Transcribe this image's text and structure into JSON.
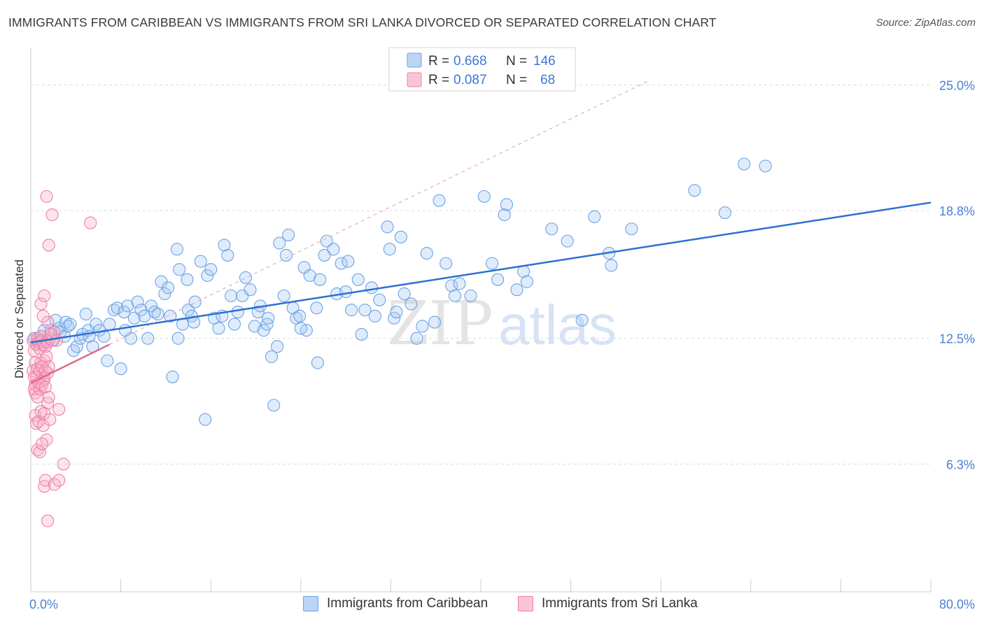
{
  "title": "IMMIGRANTS FROM CARIBBEAN VS IMMIGRANTS FROM SRI LANKA DIVORCED OR SEPARATED CORRELATION CHART",
  "source": "Source: ZipAtlas.com",
  "watermark": {
    "zip": "ZIP",
    "atlas": "atlas"
  },
  "colors": {
    "blue": "#6aa3e8",
    "blue_line": "#2d6fd1",
    "pink": "#f07fa5",
    "pink_line": "#e06a93",
    "axis_text": "#4a7fd4"
  },
  "legend": {
    "rows": [
      {
        "r_label": "R =",
        "r_value": "0.668",
        "n_label": "N =",
        "n_value": "146"
      },
      {
        "r_label": "R =",
        "r_value": "0.087",
        "n_label": "N =",
        "n_value": "68"
      }
    ]
  },
  "bottom_legend": [
    {
      "label": "Immigrants from Caribbean"
    },
    {
      "label": "Immigrants from Sri Lanka"
    }
  ],
  "chart_data": {
    "type": "scatter",
    "title": "IMMIGRANTS FROM CARIBBEAN VS IMMIGRANTS FROM SRI LANKA DIVORCED OR SEPARATED CORRELATION CHART",
    "xlabel": "",
    "ylabel": "Divorced or Separated",
    "xlim": [
      0,
      80
    ],
    "ylim": [
      0,
      26.5
    ],
    "x_tick_labels": [
      "0.0%",
      "80.0%"
    ],
    "y_ticks": [
      6.3,
      12.5,
      18.8,
      25.0
    ],
    "y_tick_labels": [
      "6.3%",
      "12.5%",
      "18.8%",
      "25.0%"
    ],
    "grid": "horizontal dashed",
    "legend_position": "top-center",
    "series": [
      {
        "name": "Immigrants from Caribbean",
        "color": "#6aa3e8",
        "trend": {
          "x": [
            0.0,
            80.0
          ],
          "y": [
            12.3,
            19.2
          ]
        },
        "points": [
          [
            0.3,
            12.5
          ],
          [
            0.5,
            12.2
          ],
          [
            0.7,
            12.4
          ],
          [
            0.9,
            12.6
          ],
          [
            1.1,
            12.3
          ],
          [
            1.2,
            12.9
          ],
          [
            1.5,
            12.4
          ],
          [
            1.8,
            12.9
          ],
          [
            2.0,
            12.4
          ],
          [
            2.2,
            13.4
          ],
          [
            2.5,
            13.0
          ],
          [
            2.6,
            12.8
          ],
          [
            3.0,
            12.6
          ],
          [
            3.1,
            13.3
          ],
          [
            3.3,
            13.1
          ],
          [
            3.5,
            13.2
          ],
          [
            3.8,
            11.9
          ],
          [
            4.1,
            12.1
          ],
          [
            4.4,
            12.5
          ],
          [
            4.6,
            12.7
          ],
          [
            4.9,
            13.7
          ],
          [
            5.1,
            12.9
          ],
          [
            5.2,
            12.6
          ],
          [
            5.5,
            12.1
          ],
          [
            5.8,
            13.2
          ],
          [
            6.1,
            12.9
          ],
          [
            6.5,
            12.6
          ],
          [
            6.8,
            11.4
          ],
          [
            7.0,
            13.2
          ],
          [
            7.4,
            13.9
          ],
          [
            7.7,
            14.0
          ],
          [
            8.0,
            11.0
          ],
          [
            8.3,
            13.8
          ],
          [
            8.6,
            14.1
          ],
          [
            8.9,
            12.5
          ],
          [
            9.2,
            13.5
          ],
          [
            9.5,
            14.3
          ],
          [
            9.8,
            13.9
          ],
          [
            10.1,
            13.6
          ],
          [
            10.4,
            12.5
          ],
          [
            10.7,
            14.1
          ],
          [
            11.0,
            13.8
          ],
          [
            11.3,
            13.7
          ],
          [
            11.6,
            15.3
          ],
          [
            11.9,
            14.7
          ],
          [
            12.2,
            15.0
          ],
          [
            12.4,
            13.6
          ],
          [
            12.6,
            10.6
          ],
          [
            13.0,
            16.9
          ],
          [
            13.2,
            15.9
          ],
          [
            13.5,
            13.2
          ],
          [
            13.9,
            15.4
          ],
          [
            14.0,
            13.9
          ],
          [
            14.3,
            13.6
          ],
          [
            14.5,
            13.3
          ],
          [
            14.6,
            14.3
          ],
          [
            15.1,
            16.3
          ],
          [
            15.5,
            8.5
          ],
          [
            15.7,
            15.6
          ],
          [
            16.0,
            15.9
          ],
          [
            16.3,
            13.5
          ],
          [
            16.7,
            13.0
          ],
          [
            17.0,
            13.6
          ],
          [
            17.2,
            17.1
          ],
          [
            17.5,
            16.6
          ],
          [
            17.8,
            14.6
          ],
          [
            18.1,
            13.2
          ],
          [
            18.4,
            13.8
          ],
          [
            18.8,
            14.6
          ],
          [
            19.1,
            15.5
          ],
          [
            19.5,
            14.9
          ],
          [
            19.9,
            13.1
          ],
          [
            20.2,
            13.8
          ],
          [
            20.4,
            14.1
          ],
          [
            20.7,
            12.9
          ],
          [
            21.0,
            13.2
          ],
          [
            21.1,
            13.5
          ],
          [
            21.4,
            11.6
          ],
          [
            21.6,
            9.2
          ],
          [
            21.9,
            12.1
          ],
          [
            22.1,
            17.2
          ],
          [
            22.5,
            14.6
          ],
          [
            22.7,
            16.6
          ],
          [
            22.9,
            17.6
          ],
          [
            23.3,
            14.0
          ],
          [
            23.6,
            13.5
          ],
          [
            23.9,
            13.6
          ],
          [
            24.3,
            16.0
          ],
          [
            24.5,
            12.9
          ],
          [
            24.8,
            15.6
          ],
          [
            25.4,
            14.0
          ],
          [
            25.5,
            11.3
          ],
          [
            25.7,
            15.4
          ],
          [
            26.1,
            16.6
          ],
          [
            26.3,
            17.3
          ],
          [
            26.9,
            16.9
          ],
          [
            27.2,
            14.7
          ],
          [
            27.6,
            16.2
          ],
          [
            28.0,
            14.8
          ],
          [
            28.2,
            16.3
          ],
          [
            28.5,
            13.9
          ],
          [
            29.1,
            15.4
          ],
          [
            29.4,
            12.7
          ],
          [
            29.7,
            13.9
          ],
          [
            30.3,
            15.0
          ],
          [
            31.0,
            14.4
          ],
          [
            31.7,
            18.0
          ],
          [
            31.9,
            16.9
          ],
          [
            32.3,
            13.5
          ],
          [
            32.5,
            13.8
          ],
          [
            32.9,
            17.5
          ],
          [
            33.2,
            14.7
          ],
          [
            33.8,
            14.2
          ],
          [
            34.3,
            12.5
          ],
          [
            34.8,
            13.1
          ],
          [
            35.2,
            16.7
          ],
          [
            35.9,
            13.3
          ],
          [
            36.3,
            19.3
          ],
          [
            36.9,
            16.2
          ],
          [
            37.4,
            15.1
          ],
          [
            37.7,
            14.6
          ],
          [
            38.1,
            15.2
          ],
          [
            39.1,
            14.6
          ],
          [
            40.3,
            19.5
          ],
          [
            41.0,
            16.2
          ],
          [
            41.5,
            15.4
          ],
          [
            42.1,
            18.6
          ],
          [
            42.3,
            19.1
          ],
          [
            43.2,
            14.9
          ],
          [
            43.8,
            15.8
          ],
          [
            44.1,
            15.3
          ],
          [
            46.3,
            17.9
          ],
          [
            47.7,
            17.3
          ],
          [
            49.0,
            13.4
          ],
          [
            50.1,
            18.5
          ],
          [
            51.4,
            16.7
          ],
          [
            51.6,
            16.1
          ],
          [
            53.4,
            17.9
          ],
          [
            59.0,
            19.8
          ],
          [
            61.7,
            18.7
          ],
          [
            63.4,
            21.1
          ],
          [
            65.3,
            21.0
          ],
          [
            13.1,
            12.5
          ],
          [
            8.4,
            12.9
          ],
          [
            24.0,
            13.0
          ],
          [
            30.6,
            13.6
          ]
        ]
      },
      {
        "name": "Immigrants from Sri Lanka",
        "color": "#f07fa5",
        "trend": {
          "x": [
            0.0,
            7.0
          ],
          "y": [
            10.3,
            12.2
          ]
        },
        "points": [
          [
            0.2,
            12.4
          ],
          [
            0.3,
            11.9
          ],
          [
            0.4,
            11.3
          ],
          [
            0.5,
            12.2
          ],
          [
            0.6,
            12.5
          ],
          [
            0.7,
            12.3
          ],
          [
            0.8,
            12.0
          ],
          [
            0.9,
            12.6
          ],
          [
            1.0,
            12.4
          ],
          [
            1.1,
            12.2
          ],
          [
            1.2,
            11.4
          ],
          [
            1.3,
            12.1
          ],
          [
            1.5,
            12.3
          ],
          [
            1.7,
            12.5
          ],
          [
            1.9,
            12.4
          ],
          [
            2.1,
            12.8
          ],
          [
            0.2,
            10.9
          ],
          [
            0.3,
            10.6
          ],
          [
            0.4,
            10.2
          ],
          [
            0.5,
            10.6
          ],
          [
            0.6,
            11.0
          ],
          [
            0.7,
            10.3
          ],
          [
            0.8,
            10.9
          ],
          [
            0.9,
            11.3
          ],
          [
            1.0,
            11.1
          ],
          [
            1.1,
            10.4
          ],
          [
            1.2,
            10.5
          ],
          [
            1.3,
            10.9
          ],
          [
            1.4,
            11.6
          ],
          [
            1.5,
            10.8
          ],
          [
            1.6,
            11.1
          ],
          [
            0.3,
            10.0
          ],
          [
            0.4,
            9.8
          ],
          [
            0.6,
            9.6
          ],
          [
            0.7,
            10.3
          ],
          [
            0.8,
            10.0
          ],
          [
            1.0,
            10.2
          ],
          [
            1.3,
            10.1
          ],
          [
            1.5,
            9.3
          ],
          [
            1.6,
            9.6
          ],
          [
            0.4,
            8.7
          ],
          [
            0.5,
            8.3
          ],
          [
            0.7,
            8.4
          ],
          [
            0.9,
            8.9
          ],
          [
            1.1,
            8.2
          ],
          [
            1.2,
            8.8
          ],
          [
            1.7,
            8.5
          ],
          [
            2.5,
            9.0
          ],
          [
            1.4,
            7.5
          ],
          [
            0.6,
            7.0
          ],
          [
            0.8,
            6.9
          ],
          [
            1.0,
            7.3
          ],
          [
            2.9,
            6.3
          ],
          [
            1.2,
            5.2
          ],
          [
            1.3,
            5.5
          ],
          [
            2.1,
            5.3
          ],
          [
            2.5,
            5.5
          ],
          [
            1.5,
            3.5
          ],
          [
            0.9,
            14.2
          ],
          [
            1.2,
            14.6
          ],
          [
            1.5,
            13.3
          ],
          [
            1.6,
            17.1
          ],
          [
            1.9,
            18.6
          ],
          [
            1.4,
            19.5
          ],
          [
            5.3,
            18.2
          ],
          [
            1.1,
            13.6
          ],
          [
            1.8,
            12.7
          ],
          [
            2.3,
            12.4
          ]
        ]
      }
    ]
  }
}
